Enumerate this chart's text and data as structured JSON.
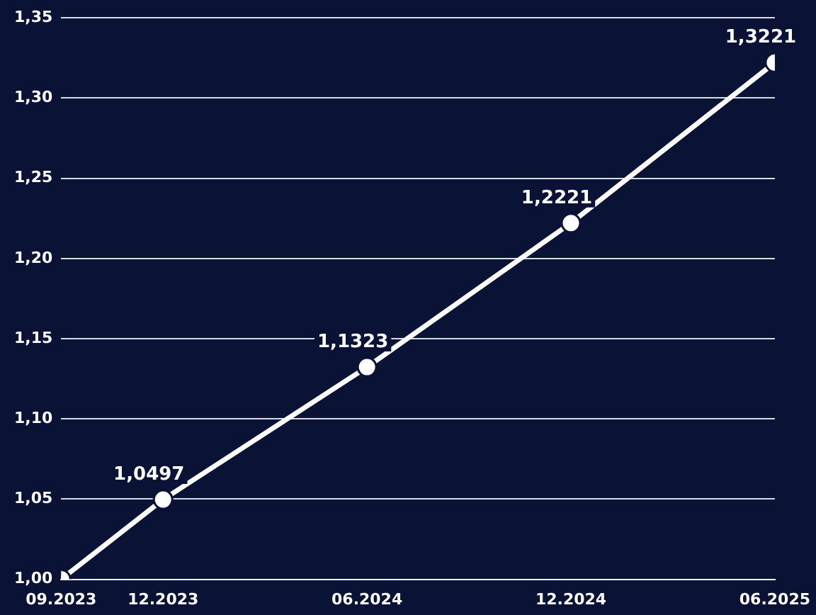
{
  "chart_data": {
    "type": "line",
    "x": [
      "2023-09",
      "2023-12",
      "2024-06",
      "2024-12",
      "2025-06"
    ],
    "series": [
      {
        "color": "#ffffff",
        "values": [
          1.0,
          1.0497,
          1.1323,
          1.2221,
          1.3221
        ],
        "value_labels": [
          null,
          "1,0497",
          "1,1323",
          "1,2221",
          "1,3221"
        ]
      }
    ],
    "xlim": [
      "2023-09",
      "2025-06"
    ],
    "xticks": [
      {
        "value": "2023-09",
        "label": "09.2023"
      },
      {
        "value": "2023-12",
        "label": "12.2023"
      },
      {
        "value": "2024-06",
        "label": "06.2024"
      },
      {
        "value": "2024-12",
        "label": "12.2024"
      },
      {
        "value": "2025-06",
        "label": "06.2025"
      }
    ],
    "ylim": [
      1.0,
      1.35
    ],
    "yticks": [
      {
        "value": 1.0,
        "label": "1,00"
      },
      {
        "value": 1.05,
        "label": "1,05"
      },
      {
        "value": 1.1,
        "label": "1,10"
      },
      {
        "value": 1.15,
        "label": "1,15"
      },
      {
        "value": 1.2,
        "label": "1,20"
      },
      {
        "value": 1.25,
        "label": "1,25"
      },
      {
        "value": 1.3,
        "label": "1,30"
      },
      {
        "value": 1.35,
        "label": "1,35"
      }
    ],
    "grid": "y",
    "legend": false,
    "marker": "circle",
    "line_style": "solid"
  }
}
